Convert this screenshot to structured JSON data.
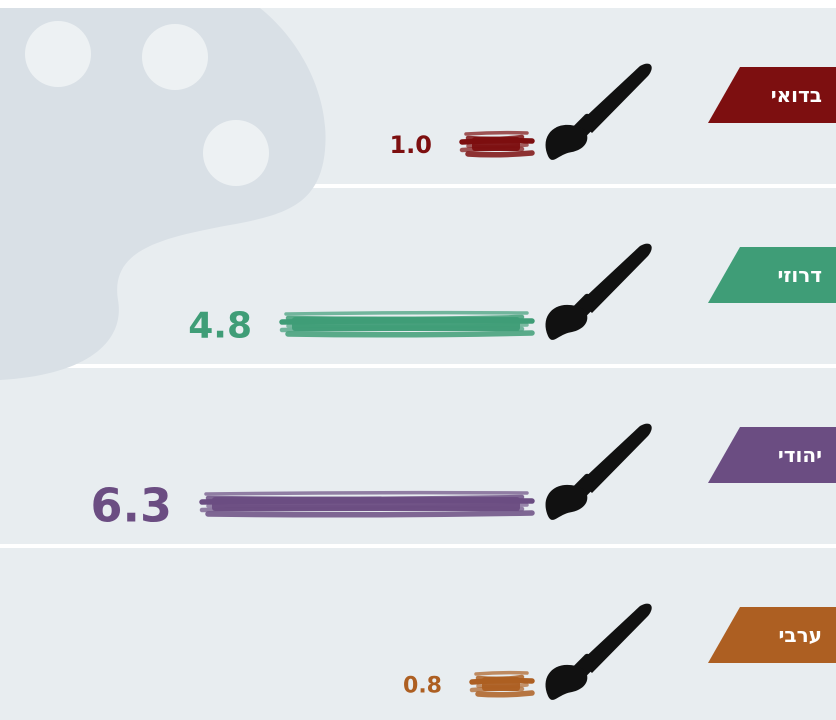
{
  "chart_data": {
    "type": "bar",
    "orientation": "horizontal",
    "direction": "right-to-left",
    "categories": [
      "בדואי",
      "דרוזי",
      "יהודי",
      "ערבי"
    ],
    "values": [
      1.0,
      4.8,
      6.3,
      0.8
    ],
    "value_labels": [
      "1.0",
      "4.8",
      "6.3",
      "0.8"
    ],
    "colors": [
      "#7d0f10",
      "#3f9d77",
      "#6b4d82",
      "#ad5f22"
    ],
    "title": "",
    "xlabel": "",
    "ylabel": "",
    "xlim": [
      0,
      6.3
    ],
    "grid": false,
    "legend": "none"
  },
  "style": {
    "background_band": "#e8edf0",
    "palette_decoration": "#d9e0e6",
    "palette_holes": "#edf1f3",
    "brush_icon_color": "#111111"
  }
}
